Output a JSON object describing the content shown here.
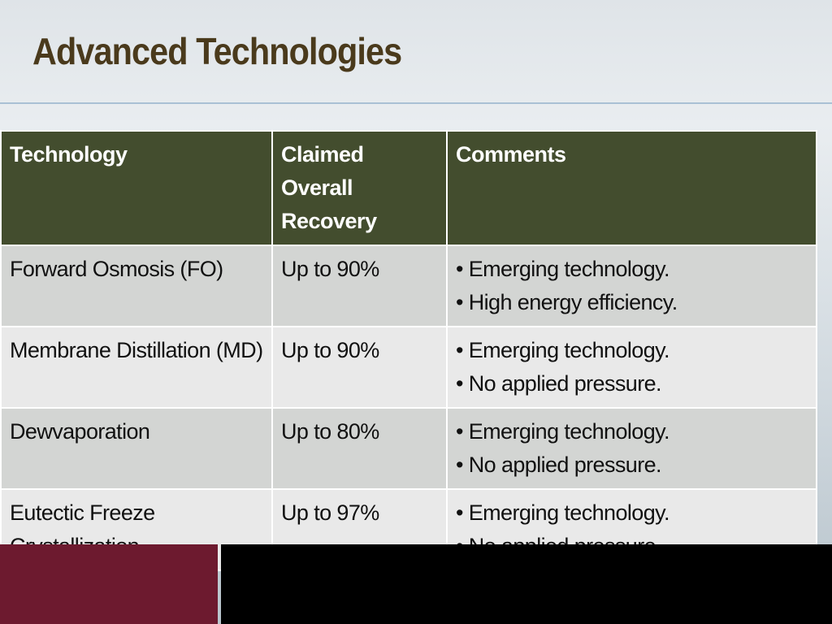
{
  "header": {
    "title": "Advanced Technologies"
  },
  "table": {
    "columns": [
      "Technology",
      "Claimed Overall Recovery",
      "Comments"
    ],
    "rows": [
      {
        "technology": "Forward Osmosis (FO)",
        "recovery": "Up to 90%",
        "comments": [
          "• Emerging technology.",
          "• High energy efficiency."
        ]
      },
      {
        "technology": "Membrane Distillation (MD)",
        "recovery": "Up to 90%",
        "comments": [
          "• Emerging technology.",
          "• No applied pressure."
        ]
      },
      {
        "technology": "Dewvaporation",
        "recovery": "Up to 80%",
        "comments": [
          "• Emerging technology.",
          "• No applied pressure."
        ]
      },
      {
        "technology": "Eutectic Freeze Crystallization",
        "recovery": "Up to 97%",
        "comments": [
          "• Emerging technology.",
          "• No applied pressure."
        ]
      }
    ]
  }
}
